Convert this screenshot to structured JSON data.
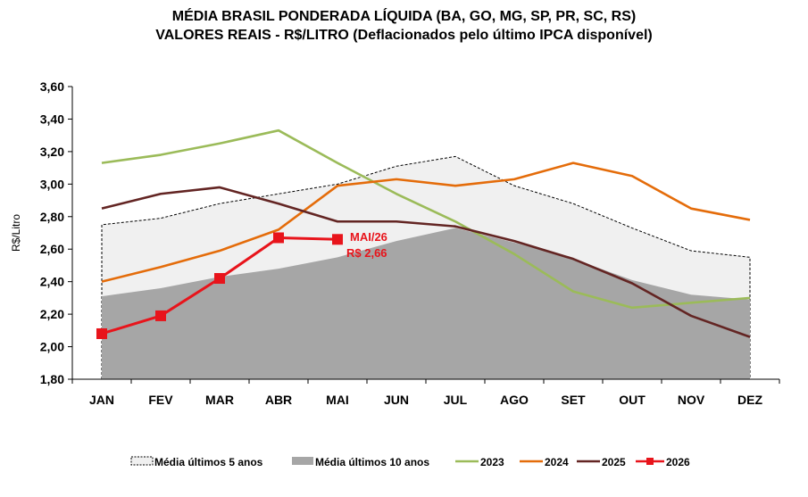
{
  "chart_data": {
    "type": "line",
    "title_line1": "MÉDIA BRASIL PONDERADA LÍQUIDA (BA, GO, MG, SP, PR, SC, RS)",
    "title_line2": "VALORES REAIS - R$/LITRO (Deflacionados  pelo último IPCA disponível)",
    "ylabel": "R$/Litro",
    "ylim": [
      1.8,
      3.6
    ],
    "yticks": [
      1.8,
      2.0,
      2.2,
      2.4,
      2.6,
      2.8,
      3.0,
      3.2,
      3.4,
      3.6
    ],
    "ytick_labels": [
      "1,80",
      "2,00",
      "2,20",
      "2,40",
      "2,60",
      "2,80",
      "3,00",
      "3,20",
      "3,40",
      "3,60"
    ],
    "categories": [
      "JAN",
      "FEV",
      "MAR",
      "ABR",
      "MAI",
      "JUN",
      "JUL",
      "AGO",
      "SET",
      "OUT",
      "NOV",
      "DEZ"
    ],
    "grid": false,
    "legend_position": "bottom",
    "series": [
      {
        "name": "Média últimos 5 anos",
        "style": "dashed-area",
        "color": "#f0f0f0",
        "values": [
          2.75,
          2.79,
          2.88,
          2.94,
          3.0,
          3.11,
          3.17,
          2.99,
          2.88,
          2.73,
          2.59,
          2.55
        ]
      },
      {
        "name": "Média últimos 10 anos",
        "style": "area",
        "color": "#a6a6a6",
        "values": [
          2.31,
          2.36,
          2.43,
          2.48,
          2.55,
          2.65,
          2.73,
          2.64,
          2.54,
          2.41,
          2.32,
          2.29
        ]
      },
      {
        "name": "2023",
        "style": "line",
        "color": "#9bbb59",
        "values": [
          3.13,
          3.18,
          3.25,
          3.33,
          3.13,
          2.94,
          2.77,
          2.57,
          2.34,
          2.24,
          2.27,
          2.3
        ]
      },
      {
        "name": "2024",
        "style": "line",
        "color": "#e46c0a",
        "values": [
          2.4,
          2.49,
          2.59,
          2.72,
          2.99,
          3.03,
          2.99,
          3.03,
          3.13,
          3.05,
          2.85,
          2.78
        ]
      },
      {
        "name": "2025",
        "style": "line",
        "color": "#632523",
        "values": [
          2.85,
          2.94,
          2.98,
          2.88,
          2.77,
          2.77,
          2.74,
          2.65,
          2.54,
          2.39,
          2.19,
          2.06
        ]
      },
      {
        "name": "2026",
        "style": "line-markers",
        "color": "#e8141b",
        "values": [
          2.08,
          2.19,
          2.42,
          2.67,
          2.66,
          null,
          null,
          null,
          null,
          null,
          null,
          null
        ]
      }
    ],
    "annotation": {
      "line1": "MAI/26",
      "line2": "R$ 2,66",
      "category": "MAI"
    }
  }
}
